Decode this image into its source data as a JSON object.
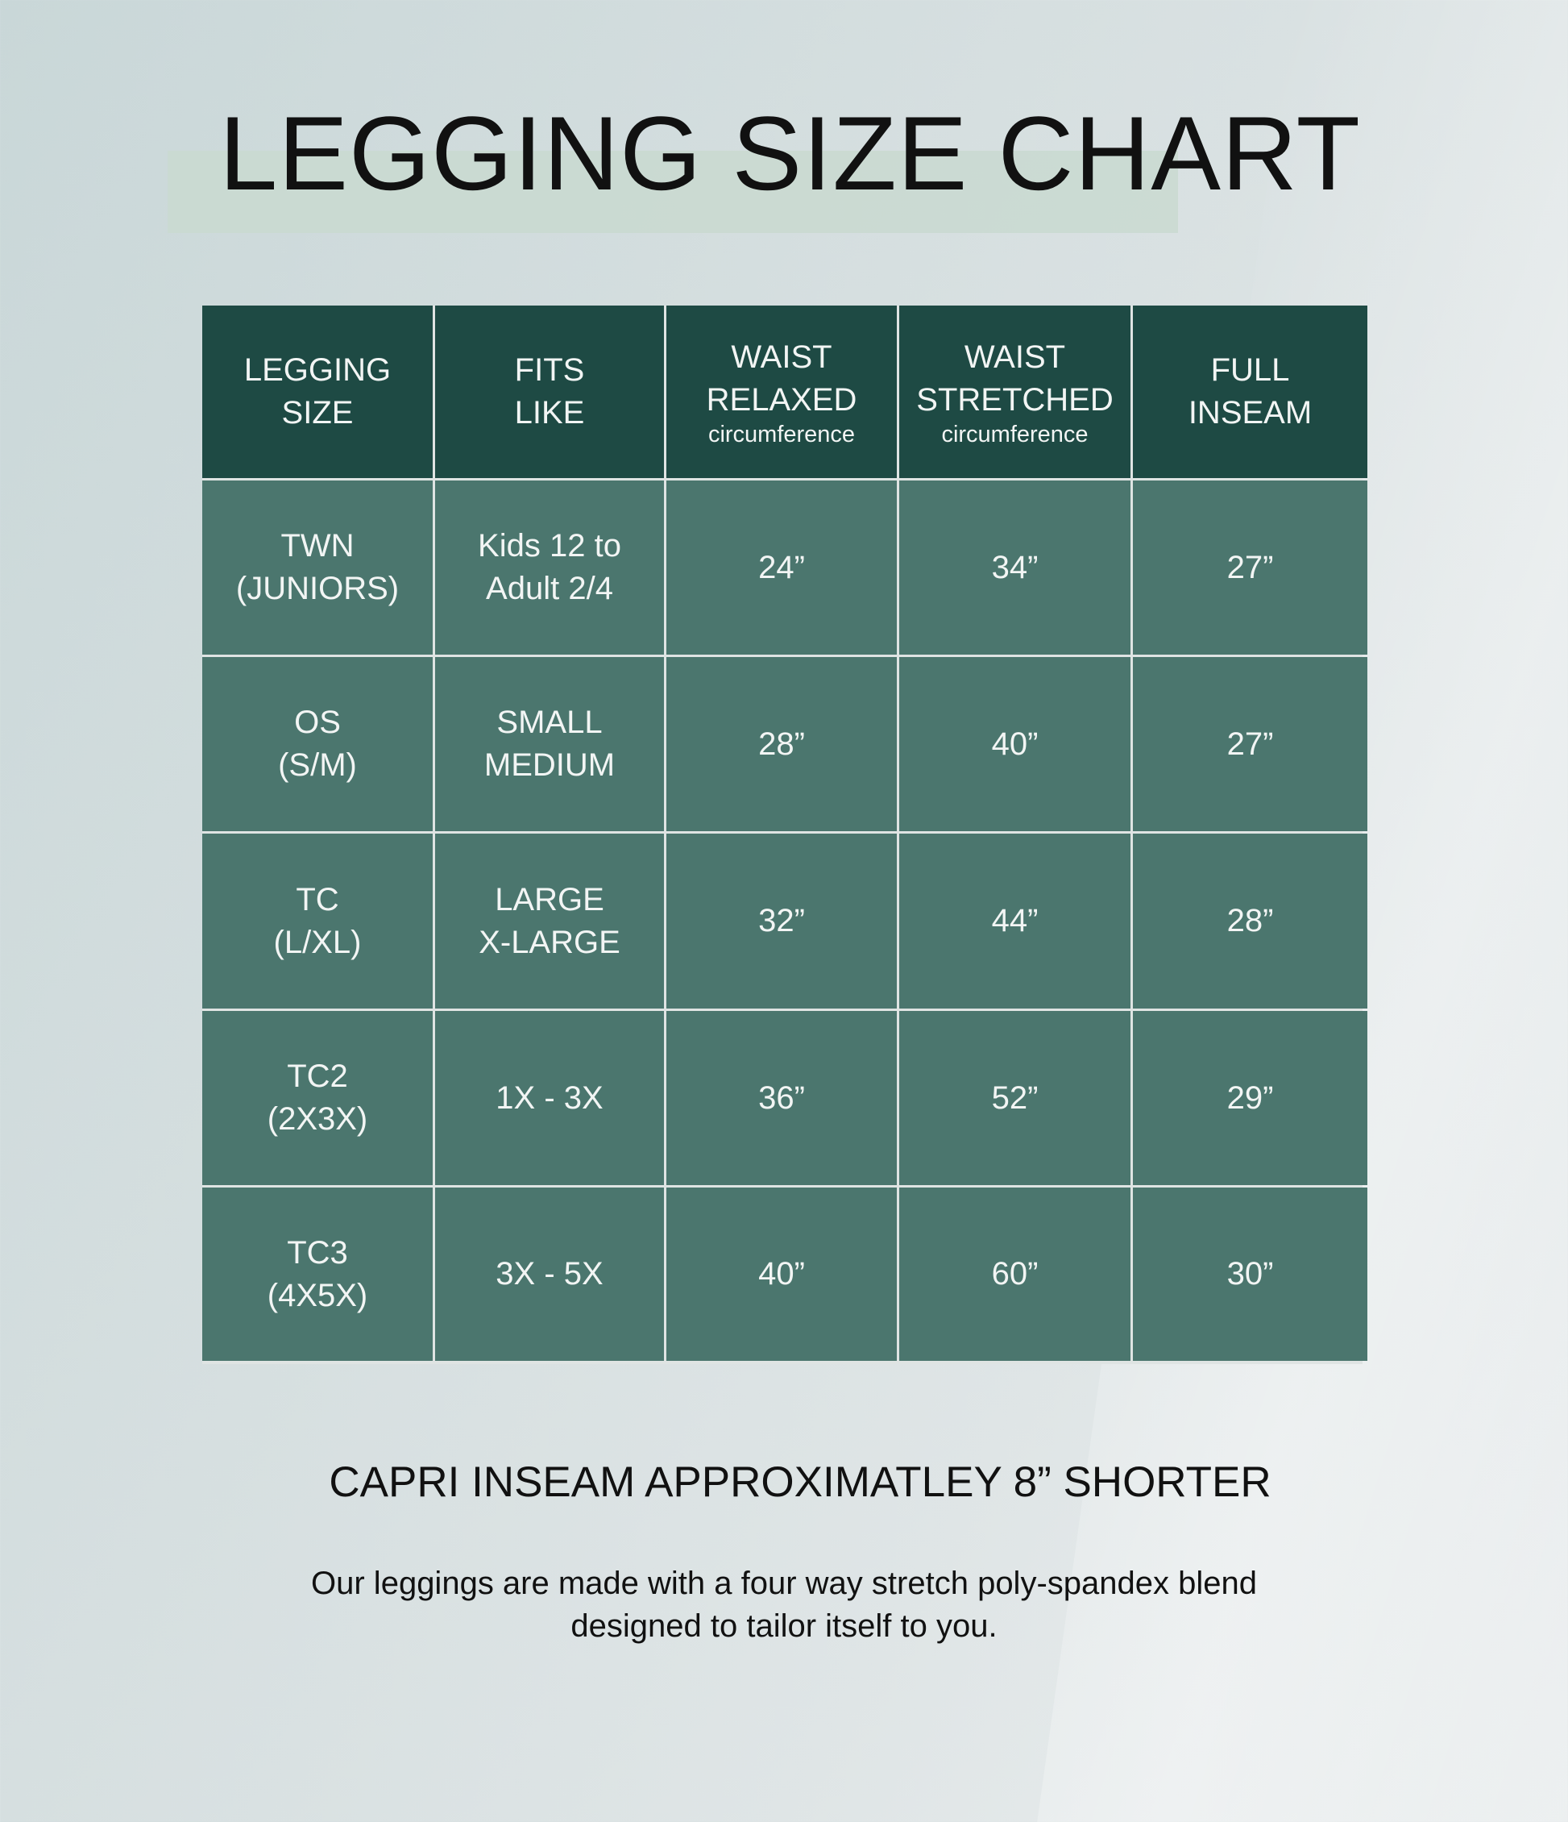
{
  "title": "LEGGING SIZE CHART",
  "colors": {
    "header": "#1e4a44",
    "row": "#4b766e",
    "band": "#c9d9d0"
  },
  "table": {
    "headers": [
      {
        "lines": [
          "LEGGING",
          "SIZE"
        ],
        "sub": ""
      },
      {
        "lines": [
          "FITS",
          "LIKE"
        ],
        "sub": ""
      },
      {
        "lines": [
          "WAIST",
          "RELAXED"
        ],
        "sub": "circumference"
      },
      {
        "lines": [
          "WAIST",
          "STRETCHED"
        ],
        "sub": "circumference"
      },
      {
        "lines": [
          "FULL",
          "INSEAM"
        ],
        "sub": ""
      }
    ],
    "rows": [
      [
        [
          "TWN",
          "(JUNIORS)"
        ],
        [
          "Kids 12 to",
          "Adult 2/4"
        ],
        [
          "24”"
        ],
        [
          "34”"
        ],
        [
          "27”"
        ]
      ],
      [
        [
          "OS",
          "(S/M)"
        ],
        [
          "SMALL",
          "MEDIUM"
        ],
        [
          "28”"
        ],
        [
          "40”"
        ],
        [
          "27”"
        ]
      ],
      [
        [
          "TC",
          "(L/XL)"
        ],
        [
          "LARGE",
          "X-LARGE"
        ],
        [
          "32”"
        ],
        [
          "44”"
        ],
        [
          "28”"
        ]
      ],
      [
        [
          "TC2",
          "(2X3X)"
        ],
        [
          "1X - 3X"
        ],
        [
          "36”"
        ],
        [
          "52”"
        ],
        [
          "29”"
        ]
      ],
      [
        [
          "TC3",
          "(4X5X)"
        ],
        [
          "3X - 5X"
        ],
        [
          "40”"
        ],
        [
          "60”"
        ],
        [
          "30”"
        ]
      ]
    ]
  },
  "capri_note": "CAPRI INSEAM APPROXIMATLEY 8” SHORTER",
  "description": [
    "Our leggings are made with a four way stretch poly-spandex blend",
    "designed to tailor itself to you."
  ]
}
